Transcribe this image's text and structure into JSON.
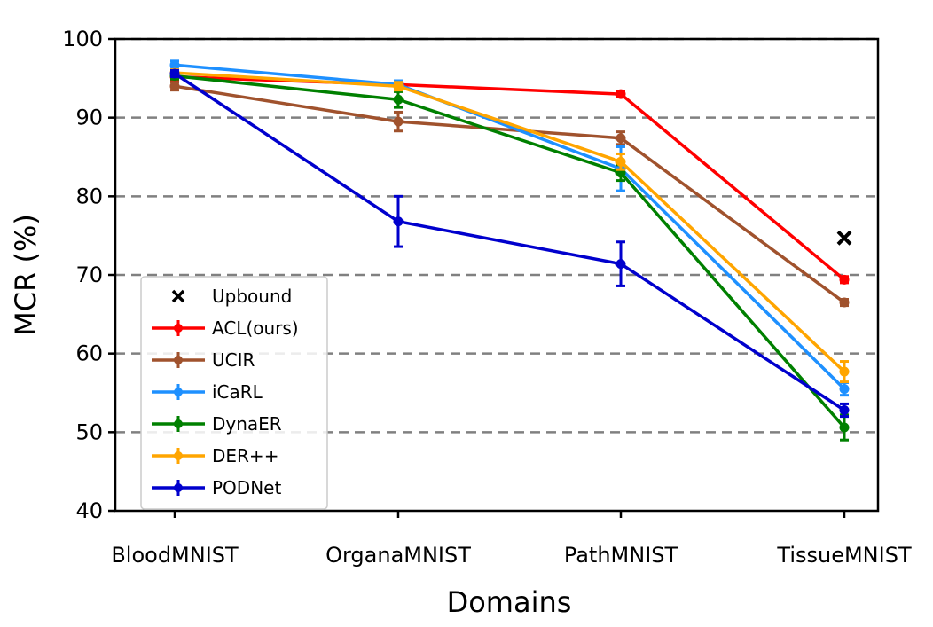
{
  "chart_data": {
    "type": "line",
    "xlabel": "Domains",
    "ylabel": "MCR (%)",
    "ylim": [
      40,
      100
    ],
    "yticks": [
      40,
      50,
      60,
      70,
      80,
      90,
      100
    ],
    "grid": "horizontal dashed",
    "legend_position": "lower-left",
    "categories": [
      "BloodMNIST",
      "OrganaMNIST",
      "PathMNIST",
      "TissueMNIST"
    ],
    "upbound": {
      "name": "Upbound",
      "category": "TissueMNIST",
      "value": 74.7,
      "color": "#000000"
    },
    "series": [
      {
        "name": "ACL(ours)",
        "color": "#ff0000",
        "values": [
          95.2,
          94.2,
          93.0,
          69.4
        ],
        "errors": [
          0.4,
          0.3,
          0.3,
          0.4
        ]
      },
      {
        "name": "UCIR",
        "color": "#a0522d",
        "values": [
          94.0,
          89.5,
          87.4,
          66.5
        ],
        "errors": [
          0.5,
          1.2,
          0.8,
          0.4
        ]
      },
      {
        "name": "iCaRL",
        "color": "#1e90ff",
        "values": [
          96.7,
          94.2,
          83.5,
          55.5
        ],
        "errors": [
          0.5,
          0.5,
          2.8,
          0.8
        ]
      },
      {
        "name": "DynaER",
        "color": "#008000",
        "values": [
          95.3,
          92.3,
          83.0,
          50.6
        ],
        "errors": [
          0.4,
          1.0,
          1.0,
          1.6
        ]
      },
      {
        "name": "DER++",
        "color": "#ffa500",
        "values": [
          95.7,
          94.0,
          84.4,
          57.7
        ],
        "errors": [
          0.4,
          0.5,
          1.0,
          1.3
        ]
      },
      {
        "name": "PODNet",
        "color": "#0000cd",
        "values": [
          95.6,
          76.8,
          71.4,
          52.8
        ],
        "errors": [
          0.4,
          3.2,
          2.8,
          0.8
        ]
      }
    ]
  }
}
